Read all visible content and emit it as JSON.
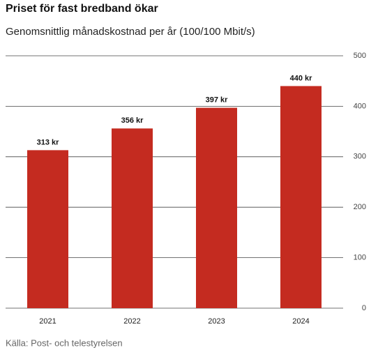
{
  "chart_data": {
    "type": "bar",
    "title": "Priset för fast bredband ökar",
    "subtitle": "Genomsnittlig månadskostnad per år (100/100 Mbit/s)",
    "source": "Källa: Post- och telestyrelsen",
    "categories": [
      "2021",
      "2022",
      "2023",
      "2024"
    ],
    "values": [
      313,
      356,
      397,
      440
    ],
    "value_labels": [
      "313 kr",
      "356 kr",
      "397 kr",
      "440 kr"
    ],
    "color": "#c42b20",
    "ylim": [
      0,
      500
    ],
    "yticks": [
      0,
      100,
      200,
      300,
      400,
      500
    ],
    "grid": true
  }
}
